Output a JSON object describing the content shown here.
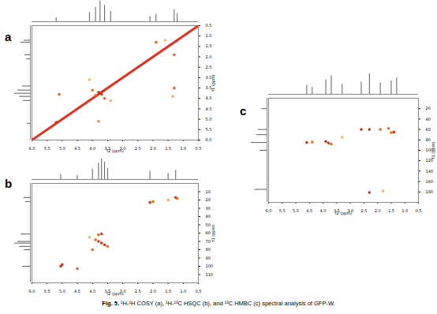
{
  "caption": {
    "label": "Fig. 5.",
    "text": "¹H-¹H COSY (a), ¹H-¹³C HSQC (b), and ¹³C HMBC (c) spectral analysis of GFP-W."
  },
  "chart_data": [
    {
      "type": "scatter",
      "title": "a",
      "x_label": "f2 (ppm)",
      "y_label": "f1 (ppm)",
      "grid": false,
      "xlim": [
        6.0,
        0.5
      ],
      "ylim": [
        0.5,
        6.0
      ],
      "xticks": [
        {
          "value": 6,
          "label": "6.0"
        },
        5.5,
        {
          "value": 5,
          "label": "5.0"
        },
        4.5,
        {
          "value": 4,
          "label": "4.0"
        },
        3.5,
        {
          "value": 3,
          "label": "3.0"
        },
        2.5,
        {
          "value": 2,
          "label": "2.0"
        },
        1.5,
        {
          "value": 1,
          "label": "1.0"
        },
        0.5
      ],
      "yticks": [
        {
          "value": 6,
          "label": "6.0"
        },
        5.5,
        {
          "value": 5,
          "label": "5.0"
        },
        4.5,
        {
          "value": 4,
          "label": "4.0"
        },
        3.5,
        {
          "value": 3,
          "label": "3.0"
        },
        2.5,
        {
          "value": 2,
          "label": "2.0"
        },
        1.5,
        {
          "value": 1,
          "label": "1.0"
        },
        0.5
      ],
      "series": [
        {
          "type": "line",
          "x": [
            6.0,
            0.5
          ],
          "values": [
            6.0,
            0.5
          ],
          "color": "#e4301c"
        },
        {
          "type": "scatter",
          "x": [
            3.8,
            3.7,
            3.65,
            3.9,
            4.0,
            3.6,
            5.1,
            3.8,
            5.2,
            1.9,
            1.3,
            1.6,
            1.3,
            1.35,
            4.1,
            3.4
          ],
          "values": [
            3.7,
            3.8,
            3.65,
            3.85,
            3.6,
            4.0,
            3.8,
            5.1,
            5.15,
            1.3,
            1.9,
            1.2,
            3.5,
            3.9,
            3.1,
            4.1
          ],
          "colors": [
            "#d7301f",
            "#d7301f",
            "#d7301f",
            "#f16913",
            "#f16913",
            "#f16913",
            "#f16913",
            "#fd8d3c",
            "#d7301f",
            "#f16913",
            "#f16913",
            "#fdae6b",
            "#f16913",
            "#fdae6b",
            "#fdae6b",
            "#fdae6b"
          ]
        }
      ],
      "top_projection": {
        "x": [
          5.2,
          4.1,
          3.9,
          3.75,
          3.6,
          3.4,
          2.1,
          1.9,
          1.3,
          1.2
        ],
        "values": [
          20,
          45,
          70,
          100,
          80,
          50,
          25,
          35,
          60,
          40
        ]
      },
      "left_projection": {
        "y": [
          5.2,
          4.1,
          3.9,
          3.75,
          3.6,
          3.4,
          2.1,
          1.9,
          1.3,
          1.2
        ],
        "values": [
          20,
          45,
          70,
          100,
          80,
          50,
          25,
          35,
          60,
          40
        ]
      }
    },
    {
      "type": "scatter",
      "title": "b",
      "x_label": "f2 (ppm)",
      "y_label": "f1 (ppm)",
      "grid": false,
      "xlim": [
        6.0,
        0.5
      ],
      "ylim": [
        0,
        120
      ],
      "xticks": [
        {
          "value": 6,
          "label": "6.0"
        },
        5.5,
        {
          "value": 5,
          "label": "5.0"
        },
        4.5,
        {
          "value": 4,
          "label": "4.0"
        },
        3.5,
        {
          "value": 3,
          "label": "3.0"
        },
        2.5,
        {
          "value": 2,
          "label": "2.0"
        },
        1.5,
        {
          "value": 1,
          "label": "1.0"
        },
        0.5
      ],
      "yticks": [
        10,
        20,
        30,
        40,
        50,
        60,
        70,
        80,
        90,
        100,
        110
      ],
      "series": [
        {
          "type": "scatter",
          "x": [
            5.05,
            5.0,
            4.5,
            3.7,
            3.6,
            3.8,
            3.5,
            4.0,
            3.9,
            3.7,
            3.8,
            4.1,
            2.1,
            2.0,
            1.25,
            1.2,
            1.5
          ],
          "values": [
            100,
            98,
            103,
            72,
            74,
            70,
            76,
            80,
            68,
            61,
            62,
            65,
            23,
            22,
            17,
            18,
            20
          ],
          "colors": [
            "#d7301f",
            "#d7301f",
            "#f16913",
            "#d7301f",
            "#d7301f",
            "#d7301f",
            "#f16913",
            "#f16913",
            "#f16913",
            "#d7301f",
            "#f16913",
            "#fdae6b",
            "#d7301f",
            "#f16913",
            "#d7301f",
            "#f16913",
            "#fdae6b"
          ]
        }
      ],
      "top_projection": {
        "x": [
          5.05,
          4.5,
          4.0,
          3.8,
          3.7,
          3.6,
          3.5,
          2.1,
          1.5,
          1.25
        ],
        "values": [
          25,
          20,
          50,
          80,
          100,
          85,
          55,
          40,
          30,
          45
        ]
      },
      "left_projection": {
        "y": [
          17,
          22,
          61,
          70,
          72,
          76,
          80,
          100
        ],
        "values": [
          40,
          30,
          60,
          80,
          100,
          70,
          40,
          50
        ]
      }
    },
    {
      "type": "scatter",
      "title": "c",
      "x_label": "f2 (ppm)",
      "y_label": "f1 (ppm)",
      "grid": false,
      "xlim": [
        6.0,
        0.5
      ],
      "ylim": [
        0,
        200
      ],
      "xticks": [
        {
          "value": 6,
          "label": "6.0"
        },
        5.5,
        {
          "value": 5,
          "label": "5.0"
        },
        4.5,
        {
          "value": 4,
          "label": "4.0"
        },
        3.5,
        {
          "value": 3,
          "label": "3.0"
        },
        2.5,
        {
          "value": 2,
          "label": "2.0"
        },
        1.5,
        {
          "value": 1,
          "label": "1.0"
        },
        0.5
      ],
      "yticks": [
        20,
        40,
        60,
        80,
        100,
        120,
        140,
        160,
        180
      ],
      "series": [
        {
          "type": "scatter",
          "x": [
            4.6,
            4.4,
            3.9,
            3.8,
            3.7,
            3.3,
            2.6,
            2.3,
            1.9,
            1.6,
            1.5,
            1.4,
            2.3,
            1.8
          ],
          "values": [
            85,
            84,
            83,
            86,
            88,
            75,
            60,
            60,
            60,
            58,
            66,
            65,
            181,
            178
          ],
          "colors": [
            "#d7301f",
            "#f16913",
            "#d7301f",
            "#d7301f",
            "#f16913",
            "#fdae6b",
            "#d7301f",
            "#d7301f",
            "#f16913",
            "#f16913",
            "#f16913",
            "#d7301f",
            "#d7301f",
            "#fdae6b"
          ]
        }
      ],
      "top_projection": {
        "x": [
          4.6,
          4.4,
          3.9,
          3.7,
          3.3,
          2.6,
          2.3,
          1.9,
          1.5,
          1.3
        ],
        "values": [
          45,
          35,
          70,
          90,
          50,
          60,
          100,
          55,
          65,
          80
        ]
      },
      "left_projection": {
        "y": [
          20,
          60,
          70,
          85,
          100,
          175
        ],
        "values": [
          30,
          50,
          60,
          90,
          40,
          70
        ]
      }
    }
  ]
}
